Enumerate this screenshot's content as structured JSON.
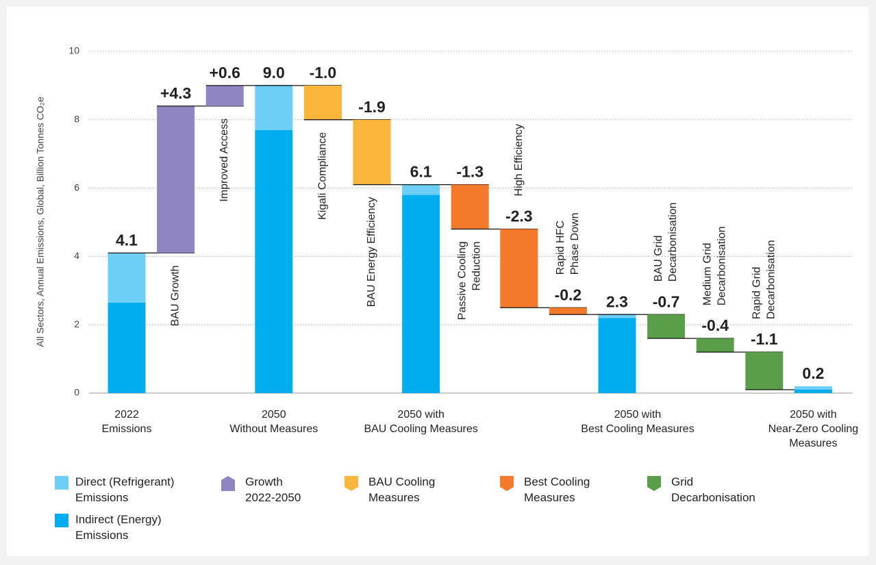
{
  "chart_data": {
    "type": "waterfall",
    "y_label": "All Sectors, Annual Emissions, Global, Billion Tonnes CO₂e",
    "categories": [
      "2022\nEmissions",
      "BAU Growth",
      "Improved Access",
      "2050\nWithout Measures",
      "Kigali Compliance",
      "BAU Energy Efficiency",
      "2050 with\nBAU Cooling Measures",
      "Passive Cooling\nReduction",
      "High Efficiency",
      "Rapid HFC\nPhase Down",
      "2050 with\nBest Cooling Measures",
      "BAU Grid\nDecarbonisation",
      "Medium Grid\nDecarbonisation",
      "Rapid Grid\nDecarbonisation",
      "2050 with\nNear-Zero Cooling\nMeasures"
    ],
    "totals": [
      4.1,
      null,
      null,
      9.0,
      null,
      null,
      6.1,
      null,
      null,
      null,
      2.3,
      null,
      null,
      null,
      0.2
    ],
    "total_labels": [
      "4.1",
      null,
      null,
      "9.0",
      null,
      null,
      "6.1",
      null,
      null,
      null,
      "2.3",
      null,
      null,
      null,
      "0.2"
    ],
    "total_color": "#1ea5e3",
    "series": [
      {
        "name": "Indirect (Energy)\nEmissions",
        "color": "#00aeef",
        "values": [
          2.65,
          null,
          null,
          7.7,
          null,
          null,
          5.8,
          null,
          null,
          null,
          2.2,
          null,
          null,
          null,
          0.1
        ]
      },
      {
        "name": "Direct (Refrigerant)\nEmissions",
        "color": "#6dcff6",
        "values": [
          1.45,
          null,
          null,
          1.3,
          null,
          null,
          0.3,
          null,
          null,
          null,
          0.1,
          null,
          null,
          null,
          0.1
        ]
      },
      {
        "name": "Growth\n2022-2050",
        "color": "#8e85c1",
        "values": [
          null,
          4.3,
          0.6,
          null,
          null,
          null,
          null,
          null,
          null,
          null,
          null,
          null,
          null,
          null,
          null
        ],
        "value_labels": [
          null,
          "+4.3",
          "+0.6",
          null,
          null,
          null,
          null,
          null,
          null,
          null,
          null,
          null,
          null,
          null,
          null
        ]
      },
      {
        "name": "BAU Cooling\nMeasures",
        "color": "#fbb53a",
        "values": [
          null,
          null,
          null,
          null,
          -1.0,
          -1.9,
          null,
          null,
          null,
          null,
          null,
          null,
          null,
          null,
          null
        ],
        "value_labels": [
          null,
          null,
          null,
          null,
          "-1.0",
          "-1.9",
          null,
          null,
          null,
          null,
          null,
          null,
          null,
          null,
          null
        ]
      },
      {
        "name": "Best Cooling\nMeasures",
        "color": "#f37a2b",
        "values": [
          null,
          null,
          null,
          null,
          null,
          null,
          null,
          -1.3,
          -2.3,
          -0.2,
          null,
          null,
          null,
          null,
          null
        ],
        "value_labels": [
          null,
          null,
          null,
          null,
          null,
          null,
          null,
          "-1.3",
          "-2.3",
          "-0.2",
          null,
          null,
          null,
          null,
          null
        ]
      },
      {
        "name": "Grid\nDecarbonisation",
        "color": "#5a9e4a",
        "values": [
          null,
          null,
          null,
          null,
          null,
          null,
          null,
          null,
          null,
          null,
          null,
          -0.7,
          -0.4,
          -1.1,
          null
        ],
        "value_labels": [
          null,
          null,
          null,
          null,
          null,
          null,
          null,
          null,
          null,
          null,
          null,
          "-0.7",
          "-0.4",
          "-1.1",
          null
        ]
      }
    ],
    "ylim": [
      0,
      10
    ],
    "yticks": [
      0,
      2,
      4,
      6,
      8,
      10
    ],
    "grid": true
  }
}
